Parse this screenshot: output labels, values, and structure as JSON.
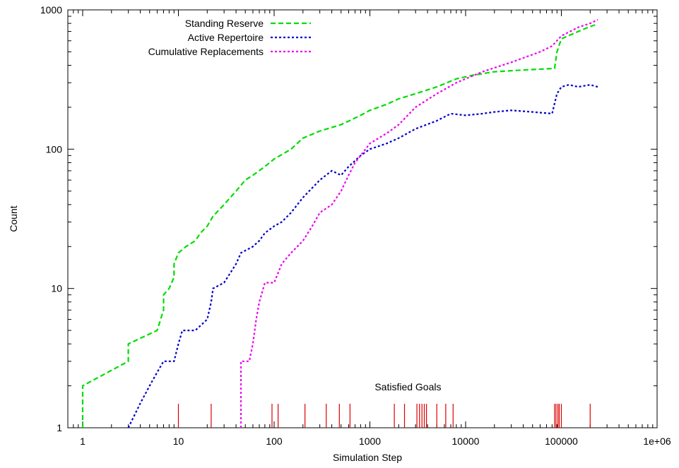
{
  "chart_data": {
    "type": "line",
    "title": "",
    "xlabel": "Simulation Step",
    "ylabel": "Count",
    "x_scale": "log",
    "y_scale": "log",
    "xlim": [
      0.7,
      1000000
    ],
    "ylim": [
      1,
      1000
    ],
    "grid": false,
    "legend_position": "top-center",
    "x_ticks": [
      {
        "value": 1,
        "label": "1"
      },
      {
        "value": 10,
        "label": "10"
      },
      {
        "value": 100,
        "label": "100"
      },
      {
        "value": 1000,
        "label": "1000"
      },
      {
        "value": 10000,
        "label": "10000"
      },
      {
        "value": 100000,
        "label": "100000"
      },
      {
        "value": 1000000,
        "label": "1e+06"
      }
    ],
    "y_ticks": [
      {
        "value": 1,
        "label": "1"
      },
      {
        "value": 10,
        "label": "10"
      },
      {
        "value": 100,
        "label": "100"
      },
      {
        "value": 1000,
        "label": "1000"
      }
    ],
    "series": [
      {
        "name": "Standing Reserve",
        "color": "#00dd00",
        "style": "dashed",
        "points": [
          [
            1,
            1
          ],
          [
            1,
            2
          ],
          [
            3,
            3
          ],
          [
            3,
            4
          ],
          [
            6,
            5
          ],
          [
            7,
            7
          ],
          [
            7,
            9
          ],
          [
            8,
            10
          ],
          [
            9,
            12
          ],
          [
            9,
            15
          ],
          [
            10,
            18
          ],
          [
            12,
            20
          ],
          [
            15,
            22
          ],
          [
            17,
            25
          ],
          [
            20,
            28
          ],
          [
            23,
            33
          ],
          [
            30,
            40
          ],
          [
            40,
            50
          ],
          [
            50,
            60
          ],
          [
            60,
            65
          ],
          [
            80,
            75
          ],
          [
            100,
            85
          ],
          [
            150,
            100
          ],
          [
            200,
            120
          ],
          [
            300,
            135
          ],
          [
            500,
            150
          ],
          [
            800,
            175
          ],
          [
            1000,
            190
          ],
          [
            1500,
            210
          ],
          [
            2000,
            230
          ],
          [
            3000,
            250
          ],
          [
            5000,
            280
          ],
          [
            8000,
            320
          ],
          [
            12000,
            340
          ],
          [
            20000,
            360
          ],
          [
            40000,
            370
          ],
          [
            85000,
            380
          ],
          [
            90000,
            500
          ],
          [
            100000,
            620
          ],
          [
            150000,
            700
          ],
          [
            200000,
            760
          ],
          [
            240000,
            790
          ]
        ]
      },
      {
        "name": "Active Repertoire",
        "color": "#0000cc",
        "style": "dotted",
        "points": [
          [
            3,
            1
          ],
          [
            4,
            1.5
          ],
          [
            5,
            2
          ],
          [
            6,
            2.5
          ],
          [
            7,
            3
          ],
          [
            9,
            3
          ],
          [
            10,
            4
          ],
          [
            11,
            5
          ],
          [
            15,
            5
          ],
          [
            20,
            6
          ],
          [
            22,
            8
          ],
          [
            23,
            10
          ],
          [
            30,
            11
          ],
          [
            40,
            15
          ],
          [
            45,
            18
          ],
          [
            60,
            20
          ],
          [
            70,
            22
          ],
          [
            80,
            25
          ],
          [
            100,
            28
          ],
          [
            120,
            30
          ],
          [
            150,
            35
          ],
          [
            200,
            45
          ],
          [
            300,
            60
          ],
          [
            400,
            70
          ],
          [
            500,
            65
          ],
          [
            600,
            75
          ],
          [
            800,
            90
          ],
          [
            1000,
            100
          ],
          [
            1500,
            110
          ],
          [
            2000,
            120
          ],
          [
            3000,
            140
          ],
          [
            5000,
            160
          ],
          [
            7000,
            180
          ],
          [
            10000,
            175
          ],
          [
            15000,
            180
          ],
          [
            20000,
            185
          ],
          [
            30000,
            190
          ],
          [
            50000,
            185
          ],
          [
            80000,
            180
          ],
          [
            90000,
            250
          ],
          [
            100000,
            280
          ],
          [
            120000,
            290
          ],
          [
            150000,
            280
          ],
          [
            200000,
            290
          ],
          [
            240000,
            280
          ]
        ]
      },
      {
        "name": "Cumulative Replacements",
        "color": "#ee00ee",
        "style": "dotted",
        "points": [
          [
            45,
            1
          ],
          [
            45,
            3
          ],
          [
            55,
            3
          ],
          [
            60,
            4
          ],
          [
            65,
            6
          ],
          [
            70,
            8
          ],
          [
            80,
            11
          ],
          [
            100,
            11
          ],
          [
            120,
            15
          ],
          [
            150,
            18
          ],
          [
            200,
            22
          ],
          [
            250,
            28
          ],
          [
            300,
            35
          ],
          [
            400,
            40
          ],
          [
            500,
            50
          ],
          [
            600,
            65
          ],
          [
            700,
            80
          ],
          [
            800,
            90
          ],
          [
            1000,
            110
          ],
          [
            1500,
            130
          ],
          [
            2000,
            150
          ],
          [
            3000,
            200
          ],
          [
            5000,
            250
          ],
          [
            8000,
            300
          ],
          [
            15000,
            360
          ],
          [
            30000,
            420
          ],
          [
            60000,
            500
          ],
          [
            80000,
            550
          ],
          [
            100000,
            650
          ],
          [
            150000,
            750
          ],
          [
            200000,
            800
          ],
          [
            240000,
            850
          ]
        ]
      }
    ],
    "annotations": [
      {
        "label": "Satisfied Goals",
        "color": "#dd0000",
        "x_values": [
          10,
          22,
          95,
          110,
          210,
          350,
          480,
          620,
          1800,
          2300,
          3100,
          3300,
          3500,
          3700,
          3900,
          5000,
          6200,
          7400,
          85000,
          88000,
          92000,
          95000,
          100000,
          200000
        ]
      }
    ]
  }
}
